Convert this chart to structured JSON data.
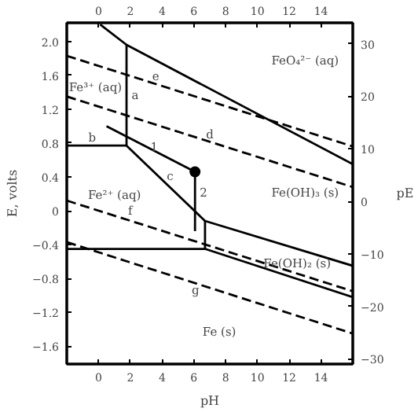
{
  "chart_data": {
    "type": "line",
    "xlabel": "pH",
    "ylabel": "E, volts",
    "y2label": "pE",
    "xlim": [
      -2,
      16
    ],
    "xticks": [
      0,
      2,
      4,
      6,
      8,
      10,
      12,
      14
    ],
    "x2lim": [
      -2,
      16
    ],
    "x2ticks": [
      0,
      2,
      4,
      6,
      8,
      10,
      12,
      14
    ],
    "ylim": [
      -1.81,
      2.22
    ],
    "yticks": [
      {
        "value": 2,
        "label": "2.0"
      },
      1.6,
      1.2,
      0.8,
      0.4,
      0,
      -0.4,
      -0.8,
      -1.2,
      -1.6
    ],
    "y2lim": [
      -31,
      34
    ],
    "y2ticks": [
      30,
      20,
      10,
      0,
      -10,
      -20,
      -30
    ],
    "grid": false,
    "series": [
      {
        "color": "#000000",
        "line_style": "solid",
        "x": [
          0.1,
          1.76,
          16
        ],
        "values": [
          2.2,
          1.96,
          0.55
        ]
      },
      {
        "color": "#000000",
        "line_style": "solid",
        "x": [
          1.76,
          1.76
        ],
        "values": [
          1.96,
          0.77
        ]
      },
      {
        "color": "#000000",
        "line_style": "solid",
        "x": [
          -2,
          1.76
        ],
        "values": [
          0.77,
          0.77
        ]
      },
      {
        "color": "#000000",
        "line_style": "solid",
        "x": [
          1.76,
          6.7,
          16
        ],
        "values": [
          0.77,
          -0.12,
          -0.65
        ]
      },
      {
        "color": "#000000",
        "line_style": "solid",
        "x": [
          6.7,
          6.7
        ],
        "values": [
          -0.12,
          -0.45
        ]
      },
      {
        "color": "#000000",
        "line_style": "solid",
        "x": [
          -2,
          6.7,
          16
        ],
        "values": [
          -0.45,
          -0.45,
          -1.02
        ]
      },
      {
        "color": "#000000",
        "line_style": "dashed",
        "x": [
          -2,
          16
        ],
        "values": [
          1.83,
          0.76
        ]
      },
      {
        "color": "#000000",
        "line_style": "dashed",
        "x": [
          -2,
          16
        ],
        "values": [
          1.35,
          0.28
        ]
      },
      {
        "color": "#000000",
        "line_style": "dashed",
        "x": [
          -2,
          16
        ],
        "values": [
          0.12,
          -0.95
        ]
      },
      {
        "color": "#000000",
        "line_style": "dashed",
        "x": [
          -2,
          16
        ],
        "values": [
          -0.37,
          -1.45
        ]
      },
      {
        "color": "#000000",
        "line_style": "solid",
        "x": [
          6.07,
          0.5
        ],
        "values": [
          0.46,
          1.0
        ]
      },
      {
        "color": "#000000",
        "line_style": "solid",
        "x": [
          6.07,
          6.07
        ],
        "values": [
          0.46,
          -0.24
        ]
      },
      {
        "type": "scatter",
        "marker": "circle",
        "color": "#000000",
        "x": [
          6.07
        ],
        "values": [
          0.46
        ]
      }
    ],
    "annotations": [
      "Fe³⁺ (aq)",
      "a",
      "e",
      "b",
      "d",
      "1",
      "c",
      "Fe²⁺ (aq)",
      "2",
      "FeO₄²⁻ (aq)",
      "Fe(OH)₃ (s)",
      "f",
      "g",
      "Fe(OH)₂ (s)",
      "Fe (s)"
    ]
  }
}
